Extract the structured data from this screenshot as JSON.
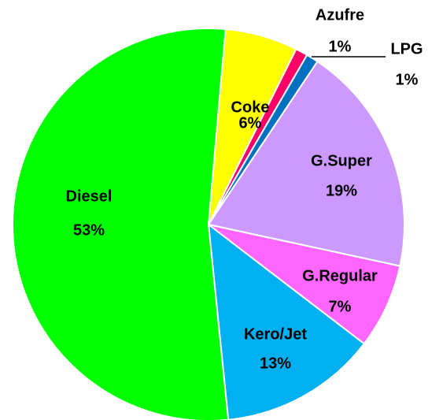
{
  "chart_data": {
    "type": "pie",
    "categories": [
      "Coke",
      "Azufre",
      "LPG",
      "G.Super",
      "G.Regular",
      "Kero/Jet",
      "Diesel"
    ],
    "values": [
      6,
      1,
      1,
      19,
      7,
      13,
      53
    ],
    "value_labels": [
      "6%",
      "1%",
      "1%",
      "19%",
      "7%",
      "13%",
      "53%"
    ],
    "colors": [
      "#ffff00",
      "#ff0066",
      "#0070c0",
      "#cc99ff",
      "#ff66ff",
      "#00b0f0",
      "#00ff00"
    ]
  }
}
